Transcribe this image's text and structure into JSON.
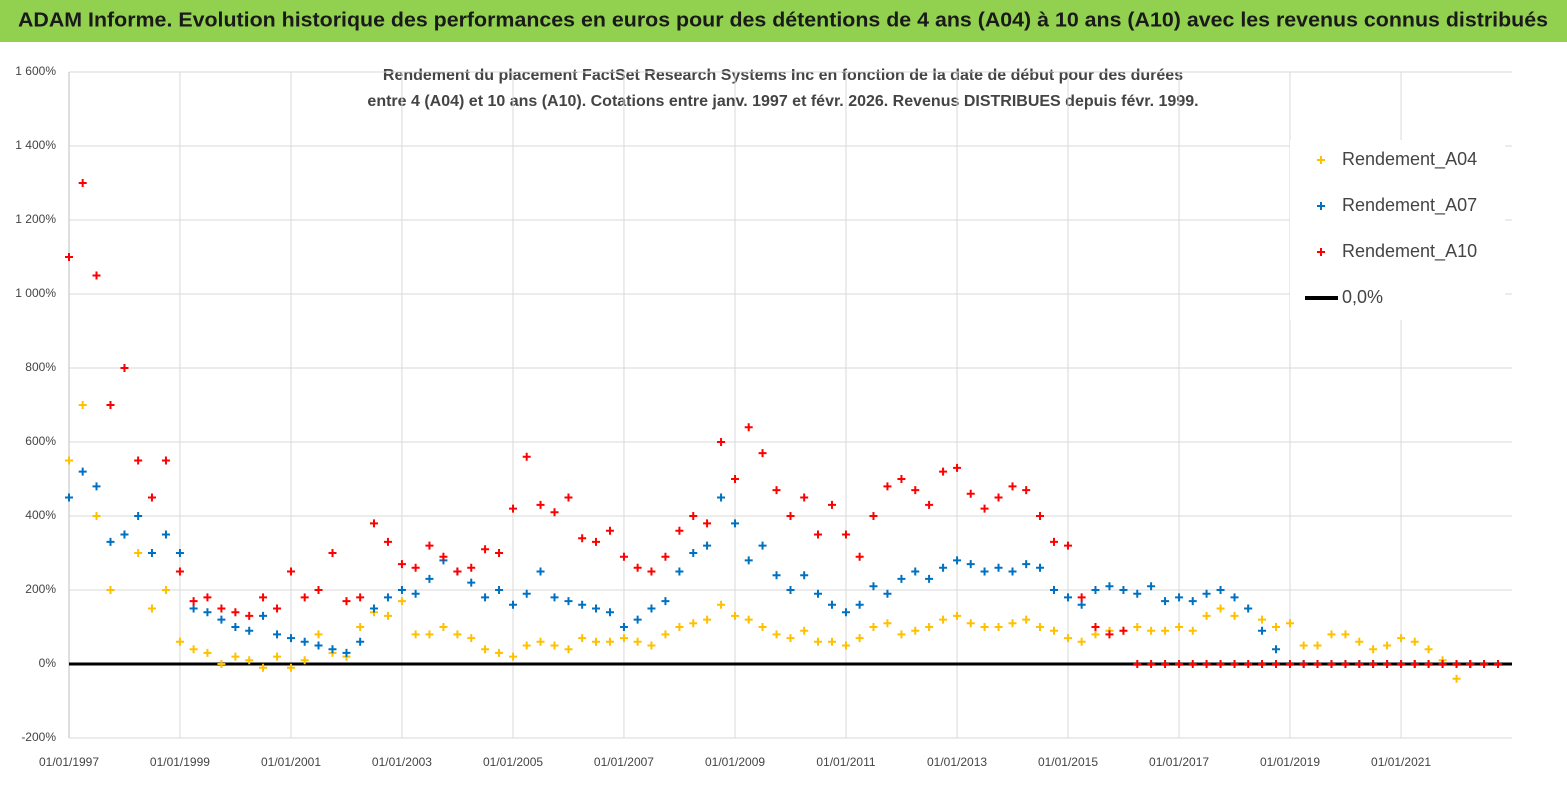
{
  "header": "ADAM Informe. Evolution historique des performances en euros pour des détentions de 4 ans (A04) à 10 ans (A10) avec les revenus connus distribués",
  "chart_data": {
    "type": "scatter",
    "title": [
      "Rendement du placement FactSet Research Systems Inc en fonction de la date de début pour des durées",
      "entre 4 (A04) et 10 ans (A10). Cotations entre janv. 1997 et févr. 2026. Revenus DISTRIBUES depuis févr. 1999."
    ],
    "x": [
      "1997-01-01",
      "1997-04-01",
      "1997-07-01",
      "1997-10-01",
      "1998-01-01",
      "1998-04-01",
      "1998-07-01",
      "1998-10-01",
      "1999-01-01",
      "1999-04-01",
      "1999-07-01",
      "1999-10-01",
      "2000-01-01",
      "2000-04-01",
      "2000-07-01",
      "2000-10-01",
      "2001-01-01",
      "2001-04-01",
      "2001-07-01",
      "2001-10-01",
      "2002-01-01",
      "2002-04-01",
      "2002-07-01",
      "2002-10-01",
      "2003-01-01",
      "2003-04-01",
      "2003-07-01",
      "2003-10-01",
      "2004-01-01",
      "2004-04-01",
      "2004-07-01",
      "2004-10-01",
      "2005-01-01",
      "2005-04-01",
      "2005-07-01",
      "2005-10-01",
      "2006-01-01",
      "2006-04-01",
      "2006-07-01",
      "2006-10-01",
      "2007-01-01",
      "2007-04-01",
      "2007-07-01",
      "2007-10-01",
      "2008-01-01",
      "2008-04-01",
      "2008-07-01",
      "2008-10-01",
      "2009-01-01",
      "2009-04-01",
      "2009-07-01",
      "2009-10-01",
      "2010-01-01",
      "2010-04-01",
      "2010-07-01",
      "2010-10-01",
      "2011-01-01",
      "2011-04-01",
      "2011-07-01",
      "2011-10-01",
      "2012-01-01",
      "2012-04-01",
      "2012-07-01",
      "2012-10-01",
      "2013-01-01",
      "2013-04-01",
      "2013-07-01",
      "2013-10-01",
      "2014-01-01",
      "2014-04-01",
      "2014-07-01",
      "2014-10-01",
      "2015-01-01",
      "2015-04-01",
      "2015-07-01",
      "2015-10-01",
      "2016-01-01",
      "2016-04-01",
      "2016-07-01",
      "2016-10-01",
      "2017-01-01",
      "2017-04-01",
      "2017-07-01",
      "2017-10-01",
      "2018-01-01",
      "2018-04-01",
      "2018-07-01",
      "2018-10-01",
      "2019-01-01",
      "2019-04-01",
      "2019-07-01",
      "2019-10-01",
      "2020-01-01",
      "2020-04-01",
      "2020-07-01",
      "2020-10-01",
      "2021-01-01",
      "2021-04-01",
      "2021-07-01",
      "2021-10-01",
      "2022-01-01",
      "2022-04-01",
      "2022-07-01",
      "2022-10-01"
    ],
    "series": [
      {
        "name": "Rendement_A04",
        "color": "#ffc000",
        "values": [
          550,
          700,
          400,
          200,
          350,
          300,
          150,
          200,
          60,
          40,
          30,
          0,
          20,
          10,
          -10,
          20,
          -10,
          10,
          80,
          30,
          20,
          100,
          140,
          130,
          170,
          80,
          80,
          100,
          80,
          70,
          40,
          30,
          20,
          50,
          60,
          50,
          40,
          70,
          60,
          60,
          70,
          60,
          50,
          80,
          100,
          110,
          120,
          160,
          130,
          120,
          100,
          80,
          70,
          90,
          60,
          60,
          50,
          70,
          100,
          110,
          80,
          90,
          100,
          120,
          130,
          110,
          100,
          100,
          110,
          120,
          100,
          90,
          70,
          60,
          80,
          90,
          90,
          100,
          90,
          90,
          100,
          90,
          130,
          150,
          130,
          150,
          120,
          100,
          110,
          50,
          50,
          80,
          80,
          60,
          40,
          50,
          70,
          60,
          40,
          10,
          -40,
          0,
          0,
          0
        ]
      },
      {
        "name": "Rendement_A07",
        "color": "#0070c0",
        "values": [
          450,
          520,
          480,
          330,
          350,
          400,
          300,
          350,
          300,
          150,
          140,
          120,
          100,
          90,
          130,
          80,
          70,
          60,
          50,
          40,
          30,
          60,
          150,
          180,
          200,
          190,
          230,
          280,
          250,
          220,
          180,
          200,
          160,
          190,
          250,
          180,
          170,
          160,
          150,
          140,
          100,
          120,
          150,
          170,
          250,
          300,
          320,
          450,
          380,
          280,
          320,
          240,
          200,
          240,
          190,
          160,
          140,
          160,
          210,
          190,
          230,
          250,
          230,
          260,
          280,
          270,
          250,
          260,
          250,
          270,
          260,
          200,
          180,
          160,
          200,
          210,
          200,
          190,
          210,
          170,
          180,
          170,
          190,
          200,
          180,
          150,
          90,
          40,
          0,
          0,
          0,
          0,
          0,
          0,
          0,
          0,
          0,
          0,
          0,
          0,
          0,
          0,
          0,
          0
        ]
      },
      {
        "name": "Rendement_A10",
        "color": "#ff0000",
        "values": [
          1100,
          1300,
          1050,
          700,
          800,
          550,
          450,
          550,
          250,
          170,
          180,
          150,
          140,
          130,
          180,
          150,
          250,
          180,
          200,
          300,
          170,
          180,
          380,
          330,
          270,
          260,
          320,
          290,
          250,
          260,
          310,
          300,
          420,
          560,
          430,
          410,
          450,
          340,
          330,
          360,
          290,
          260,
          250,
          290,
          360,
          400,
          380,
          600,
          500,
          640,
          570,
          470,
          400,
          450,
          350,
          430,
          350,
          290,
          400,
          480,
          500,
          470,
          430,
          520,
          530,
          460,
          420,
          450,
          480,
          470,
          400,
          330,
          320,
          180,
          100,
          80,
          90,
          0,
          0,
          0,
          0,
          0,
          0,
          0,
          0,
          0,
          0,
          0,
          0,
          0,
          0,
          0,
          0,
          0,
          0,
          0,
          0,
          0,
          0,
          0,
          0,
          0,
          0,
          0
        ]
      }
    ],
    "zero_line": {
      "name": "0,0%",
      "color": "#000000",
      "value": 0
    },
    "xlim": [
      "1997-01-01",
      "2023-01-01"
    ],
    "xticks": [
      {
        "value": "1997-01-01",
        "label": "01/01/1997"
      },
      {
        "value": "1999-01-01",
        "label": "01/01/1999"
      },
      {
        "value": "2001-01-01",
        "label": "01/01/2001"
      },
      {
        "value": "2003-01-01",
        "label": "01/01/2003"
      },
      {
        "value": "2005-01-01",
        "label": "01/01/2005"
      },
      {
        "value": "2007-01-01",
        "label": "01/01/2007"
      },
      {
        "value": "2009-01-01",
        "label": "01/01/2009"
      },
      {
        "value": "2011-01-01",
        "label": "01/01/2011"
      },
      {
        "value": "2013-01-01",
        "label": "01/01/2013"
      },
      {
        "value": "2015-01-01",
        "label": "01/01/2015"
      },
      {
        "value": "2017-01-01",
        "label": "01/01/2017"
      },
      {
        "value": "2019-01-01",
        "label": "01/01/2019"
      },
      {
        "value": "2021-01-01",
        "label": "01/01/2021"
      }
    ],
    "ylim": [
      -200,
      1600
    ],
    "yticks": [
      {
        "value": -200,
        "label": "-200%"
      },
      {
        "value": 0,
        "label": "0%"
      },
      {
        "value": 200,
        "label": "200%"
      },
      {
        "value": 400,
        "label": "400%"
      },
      {
        "value": 600,
        "label": "600%"
      },
      {
        "value": 800,
        "label": "800%"
      },
      {
        "value": 1000,
        "label": "1 000%"
      },
      {
        "value": 1200,
        "label": "1 200%"
      },
      {
        "value": 1400,
        "label": "1 400%"
      },
      {
        "value": 1600,
        "label": "1 600%"
      }
    ],
    "grid": true,
    "legend": "top-right"
  }
}
